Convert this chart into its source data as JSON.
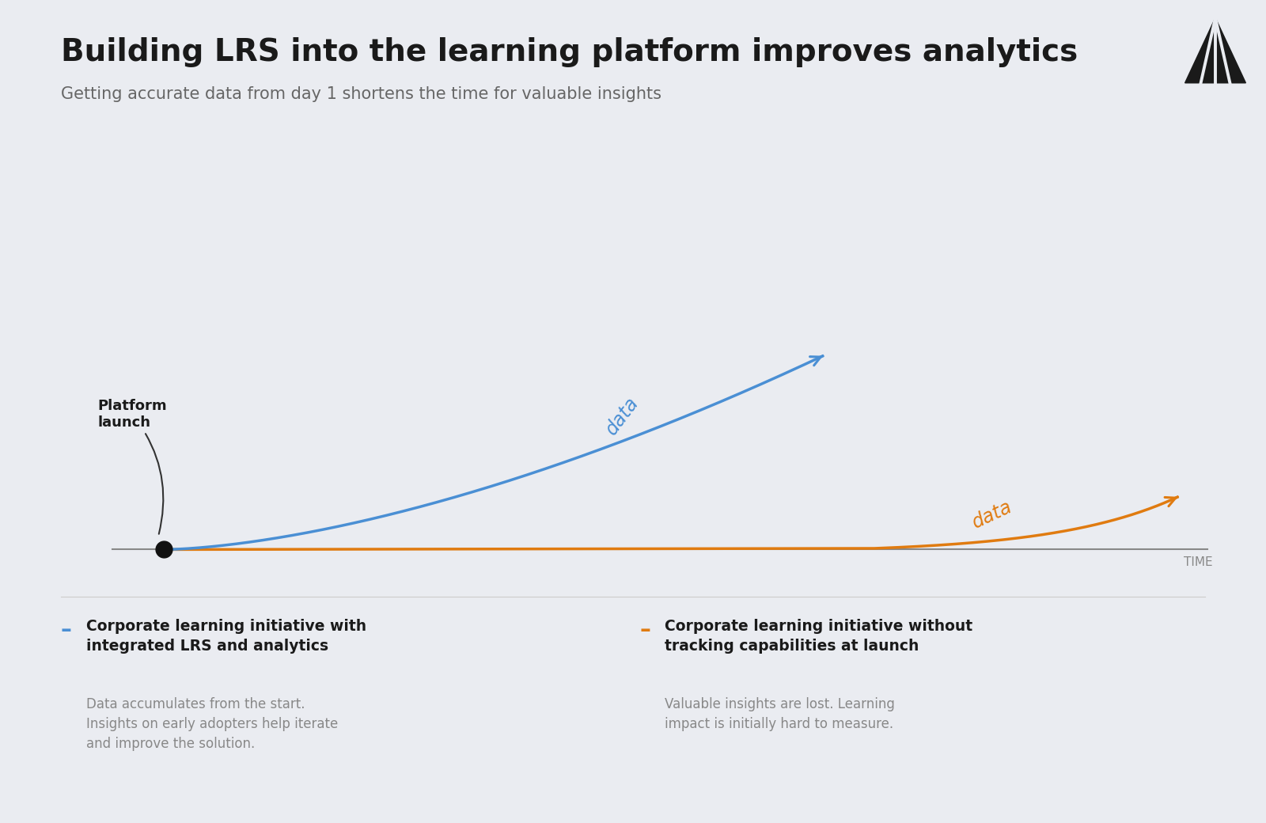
{
  "title": "Building LRS into the learning platform improves analytics",
  "subtitle": "Getting accurate data from day 1 shortens the time for valuable insights",
  "background_color": "#eaecf1",
  "title_color": "#1a1a1a",
  "subtitle_color": "#666666",
  "title_fontsize": 28,
  "subtitle_fontsize": 15,
  "blue_color": "#4a8fd4",
  "orange_color": "#e07b10",
  "axis_color": "#666666",
  "time_label": "TIME",
  "platform_launch_label": "Platform\nlaunch",
  "data_label": "data",
  "legend_items": [
    {
      "color": "#4a8fd4",
      "bold_text": "Corporate learning initiative with\nintegrated LRS and analytics",
      "body_text": "Data accumulates from the start.\nInsights on early adopters help iterate\nand improve the solution."
    },
    {
      "color": "#e07b10",
      "bold_text": "Corporate learning initiative without\ntracking capabilities at launch",
      "body_text": "Valuable insights are lost. Learning\nimpact is initially hard to measure."
    }
  ]
}
